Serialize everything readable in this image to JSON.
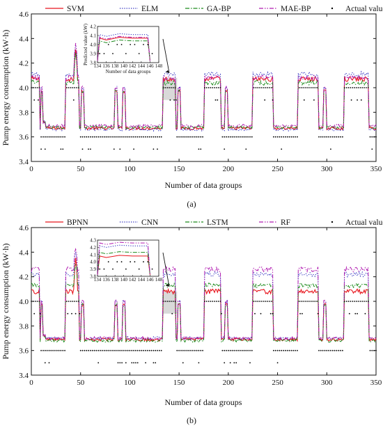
{
  "figure": {
    "panels": [
      {
        "label": "(a)",
        "ylabel": "Pump energy consumption (kW·h)",
        "xlabel": "Number of data groups",
        "inset_xlabel": "Number of data groups",
        "inset_ylabel": "Predicted value (kW)",
        "legend": [
          "SVM",
          "ELM",
          "GA-BP",
          "MAE-BP",
          "Actual value"
        ]
      },
      {
        "label": "(b)",
        "ylabel": "Pump energy consumption (kW·h)",
        "xlabel": "Number of data groups",
        "inset_xlabel": "",
        "inset_ylabel": "",
        "legend": [
          "BPNN",
          "CNN",
          "LSTM",
          "RF",
          "Actual value"
        ]
      }
    ]
  },
  "chart_data": [
    {
      "type": "line",
      "panel": "(a)",
      "xlabel": "Number of data groups",
      "ylabel": "Pump energy consumption (kW·h)",
      "xlim": [
        0,
        350
      ],
      "ylim": [
        3.4,
        4.6
      ],
      "xticks": [
        0,
        50,
        100,
        150,
        200,
        250,
        300,
        350
      ],
      "yticks": [
        3.4,
        3.6,
        3.8,
        4.0,
        4.2,
        4.4,
        4.6
      ],
      "grid": false,
      "legend_position": "top",
      "actual_value_profile": {
        "high_intervals": [
          [
            0,
            8
          ],
          [
            35,
            48
          ],
          [
            134,
            146
          ],
          [
            176,
            192
          ],
          [
            225,
            245
          ],
          [
            271,
            291
          ],
          [
            318,
            342
          ]
        ],
        "high_value": 4.0,
        "low_value": 3.6,
        "spikes": [
          [
            11,
            3.9
          ],
          [
            52,
            3.9
          ],
          [
            86,
            3.9
          ],
          [
            94,
            3.9
          ],
          [
            150,
            3.9
          ],
          [
            198,
            3.9
          ],
          [
            298,
            3.9
          ]
        ],
        "sparse_levels": [
          3.5,
          3.9
        ]
      },
      "series": [
        {
          "name": "SVM",
          "color": "#e8141c",
          "style": "solid",
          "high_level": 4.07,
          "low_level": 3.67,
          "peak": [
            45,
            4.32
          ]
        },
        {
          "name": "ELM",
          "color": "#1a1ab8",
          "style": "dotted",
          "high_level": 4.11,
          "low_level": 3.66,
          "peak": [
            45,
            4.36
          ]
        },
        {
          "name": "GA-BP",
          "color": "#1a8a1a",
          "style": "dashdot",
          "high_level": 4.04,
          "low_level": 3.68,
          "peak": [
            45,
            4.3
          ]
        },
        {
          "name": "MAE-BP",
          "color": "#b01ab0",
          "style": "dashdotdot",
          "high_level": 4.08,
          "low_level": 3.69,
          "peak": [
            45,
            4.38
          ]
        },
        {
          "name": "Actual value",
          "color": "#000000",
          "style": "points"
        }
      ],
      "inset": {
        "xlim": [
          134,
          148
        ],
        "ylim": [
          3.8,
          4.2
        ],
        "xticks": [
          134,
          136,
          138,
          140,
          142,
          144,
          146,
          148
        ],
        "yticks": [
          3.8,
          3.9,
          4.0,
          4.1,
          4.2
        ],
        "xlabel": "Number of data groups",
        "ylabel": "Predicted value (kW)",
        "actual_points": [
          3.9,
          3.9,
          4.0,
          3.9,
          4.0,
          4.0,
          3.9,
          4.0,
          4.0,
          3.9,
          4.0,
          4.0,
          3.9
        ]
      }
    },
    {
      "type": "line",
      "panel": "(b)",
      "xlabel": "Number of data groups",
      "ylabel": "Pump energy consumption (kW·h)",
      "xlim": [
        0,
        350
      ],
      "ylim": [
        3.4,
        4.6
      ],
      "xticks": [
        0,
        50,
        100,
        150,
        200,
        250,
        300,
        350
      ],
      "yticks": [
        3.4,
        3.6,
        3.8,
        4.0,
        4.2,
        4.4,
        4.6
      ],
      "grid": false,
      "legend_position": "top",
      "actual_value_profile": {
        "high_intervals": [
          [
            0,
            8
          ],
          [
            35,
            48
          ],
          [
            134,
            146
          ],
          [
            176,
            192
          ],
          [
            225,
            245
          ],
          [
            271,
            291
          ],
          [
            318,
            342
          ]
        ],
        "high_value": 4.0,
        "low_value": 3.6,
        "spikes": [
          [
            11,
            3.9
          ],
          [
            52,
            3.9
          ],
          [
            86,
            3.9
          ],
          [
            94,
            3.9
          ],
          [
            150,
            3.9
          ],
          [
            198,
            3.9
          ],
          [
            298,
            3.9
          ]
        ],
        "sparse_levels": [
          3.5,
          3.9
        ]
      },
      "series": [
        {
          "name": "BPNN",
          "color": "#e8141c",
          "style": "solid",
          "high_level": 4.08,
          "low_level": 3.69,
          "peak": [
            45,
            4.35
          ]
        },
        {
          "name": "CNN",
          "color": "#1a1ab8",
          "style": "dotted",
          "high_level": 4.22,
          "low_level": 3.7,
          "peak": [
            45,
            4.4
          ]
        },
        {
          "name": "LSTM",
          "color": "#1a8a1a",
          "style": "dashdot",
          "high_level": 4.13,
          "low_level": 3.68,
          "peak": [
            45,
            4.3
          ]
        },
        {
          "name": "RF",
          "color": "#b01ab0",
          "style": "dashdotdot",
          "high_level": 4.26,
          "low_level": 3.7,
          "peak": [
            45,
            4.43
          ]
        },
        {
          "name": "Actual value",
          "color": "#000000",
          "style": "points"
        }
      ],
      "inset": {
        "xlim": [
          134,
          148
        ],
        "ylim": [
          3.8,
          4.3
        ],
        "xticks": [
          134,
          136,
          138,
          140,
          142,
          144,
          146,
          148
        ],
        "yticks": [
          3.8,
          3.9,
          4.0,
          4.1,
          4.2,
          4.3
        ],
        "actual_points": [
          3.9,
          3.9,
          4.0,
          3.9,
          4.0,
          4.0,
          3.9,
          4.0,
          4.0,
          3.9,
          4.0,
          4.0,
          3.9
        ]
      }
    }
  ]
}
